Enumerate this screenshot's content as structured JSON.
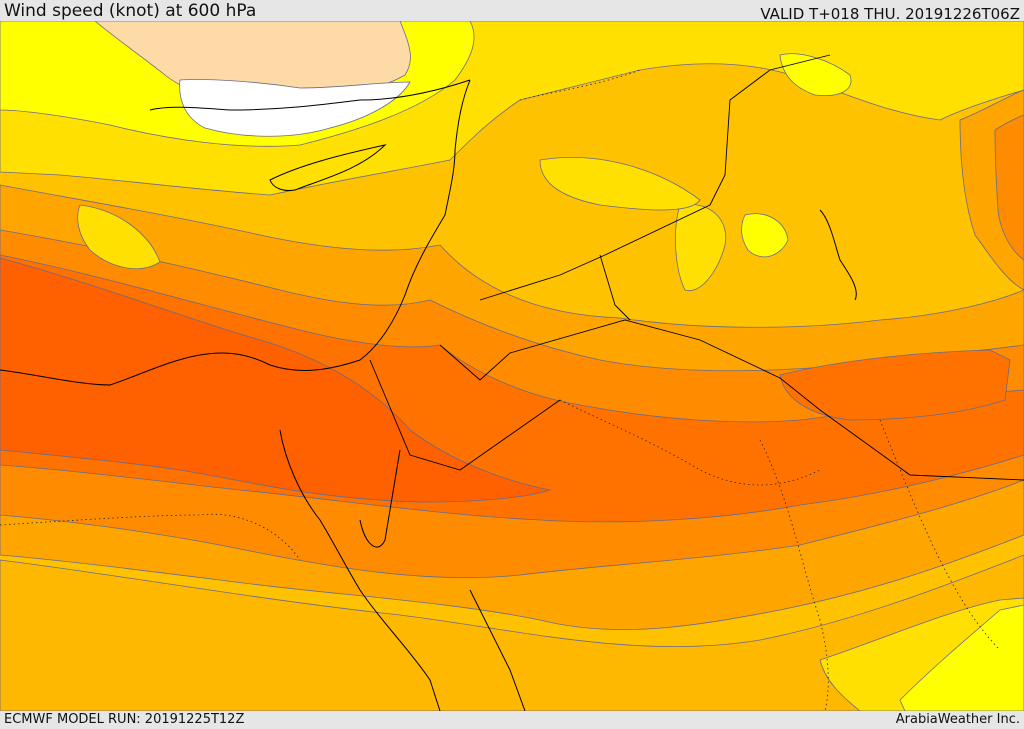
{
  "header": {
    "title": "Wind speed (knot) at 600 hPa",
    "valid": "VALID T+018 THU. 20191226T06Z"
  },
  "footer": {
    "model_run": "ECMWF MODEL RUN: 20191225T12Z",
    "credit": "ArabiaWeather Inc."
  },
  "palette": {
    "lightest": "#ffffff",
    "peach": "#fddaa6",
    "yellow": "#ffff00",
    "gold": "#ffe000",
    "amber": "#ffc200",
    "orange_light": "#ffa500",
    "orange": "#ff8c00",
    "orange_dark": "#ff7200",
    "red_orange": "#ff6000",
    "contour": "#6a6a8a",
    "border": "#000000"
  }
}
